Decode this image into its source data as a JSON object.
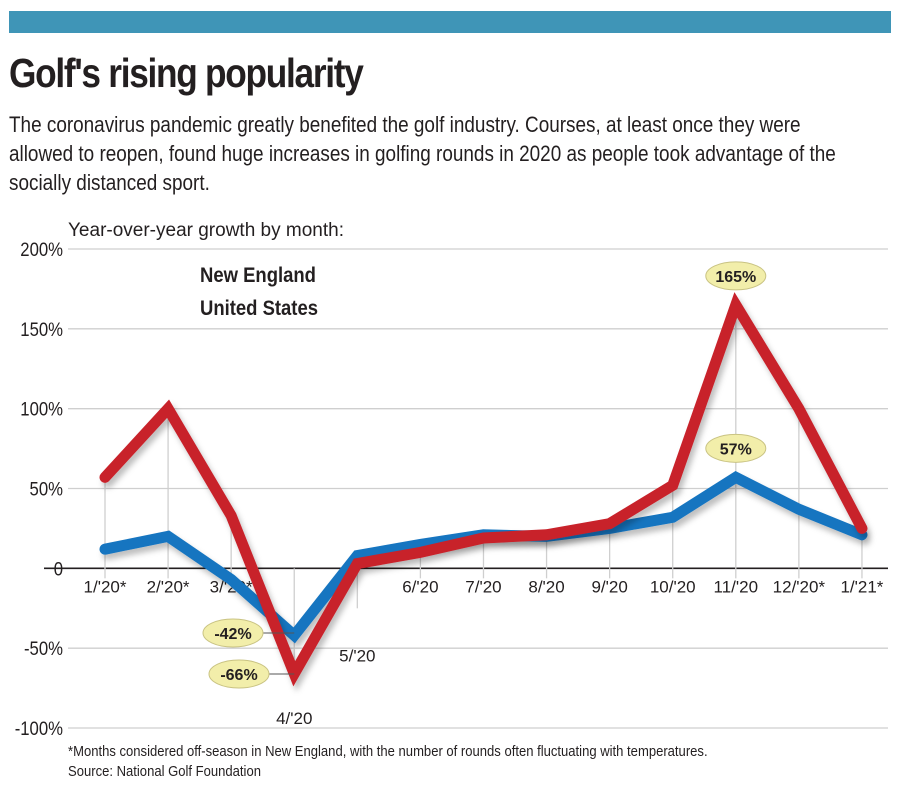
{
  "header": {
    "bar_color": "#3f95b7",
    "title": "Golf's rising popularity",
    "subtitle": "The coronavirus pandemic greatly benefited the golf industry. Courses, at least once they were allowed to reopen, found huge increases in golfing rounds in 2020 as people took advantage of the socially distanced sport."
  },
  "footer": {
    "note": "*Months considered off-season in New England, with the number of rounds often fluctuating with temperatures.",
    "source": "Source: National Golf Foundation"
  },
  "chart_data": {
    "type": "line",
    "title": "Year-over-year growth by month:",
    "xlabel": "",
    "ylabel": "",
    "categories": [
      "1/'20*",
      "2/'20*",
      "3/'20*",
      "4/'20",
      "5/'20",
      "6/'20",
      "7/'20",
      "8/'20",
      "9/'20",
      "10/'20",
      "11/'20",
      "12/'20*",
      "1/'21*"
    ],
    "ylim": [
      -100,
      200
    ],
    "yticks": [
      200,
      150,
      100,
      50,
      0,
      -50,
      -100
    ],
    "ytick_labels": [
      "200%",
      "150%",
      "100%",
      "50%",
      "0",
      "-50%",
      "-100%"
    ],
    "grid": true,
    "legend_position": "top-left",
    "series": [
      {
        "name": "New England",
        "color": "#c8202a",
        "values": [
          57,
          100,
          33,
          -66,
          3,
          10,
          19,
          21,
          28,
          52,
          165,
          100,
          25
        ]
      },
      {
        "name": "United States",
        "color": "#1474c0",
        "values": [
          12,
          20,
          -7,
          -42,
          8,
          15,
          21,
          20,
          25,
          32,
          57,
          37,
          21
        ]
      }
    ],
    "annotations": [
      {
        "series": "New England",
        "category": "11/'20",
        "text": "165%"
      },
      {
        "series": "United States",
        "category": "11/'20",
        "text": "57%"
      },
      {
        "series": "United States",
        "category": "4/'20",
        "text": "-42%"
      },
      {
        "series": "New England",
        "category": "4/'20",
        "text": "-66%"
      }
    ],
    "annotation_fill": "#f2eeaa"
  }
}
